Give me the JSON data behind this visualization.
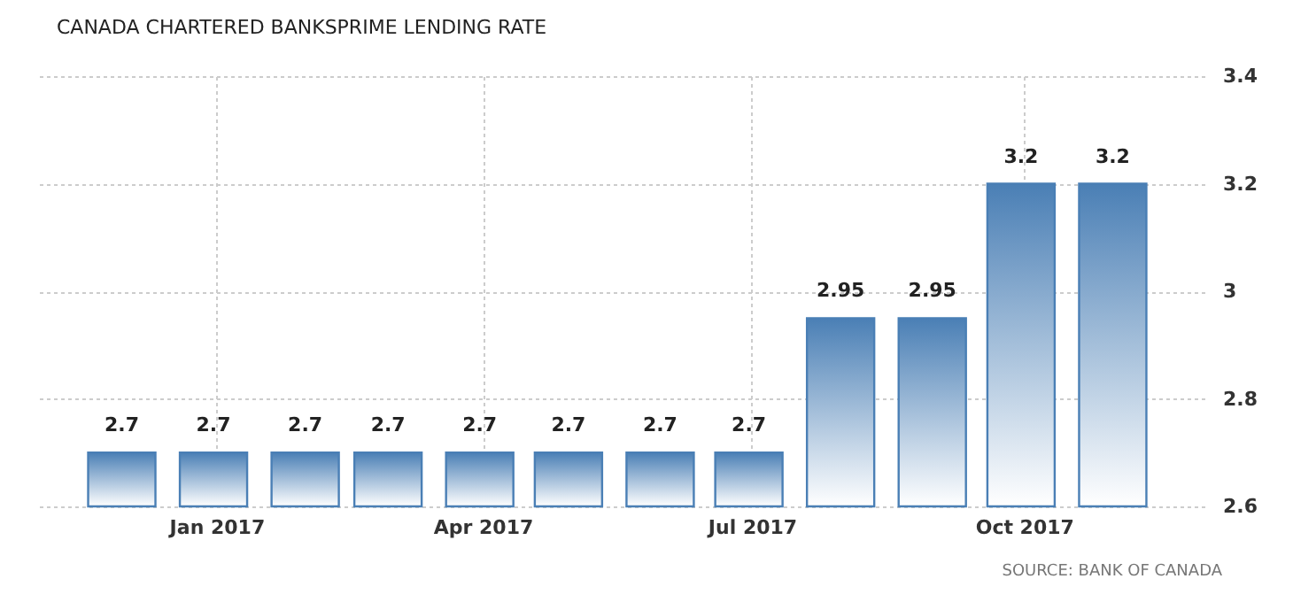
{
  "chart_data": {
    "type": "bar",
    "title": "CANADA CHARTERED BANKSPRIME LENDING RATE",
    "x": [
      "2016-11-30",
      "2016-12-31",
      "2017-01-31",
      "2017-02-28",
      "2017-03-31",
      "2017-04-30",
      "2017-05-31",
      "2017-06-30",
      "2017-07-31",
      "2017-08-31",
      "2017-09-30",
      "2017-10-31"
    ],
    "values": [
      2.7,
      2.7,
      2.7,
      2.7,
      2.7,
      2.7,
      2.7,
      2.7,
      2.95,
      2.95,
      3.2,
      3.2
    ],
    "color": "#4a7fb5",
    "xlim": [
      "2016-11-02",
      "2017-12-01"
    ],
    "xticks": [
      {
        "value": "2017-01-01",
        "label": "Jan 2017"
      },
      {
        "value": "2017-04-01",
        "label": "Apr 2017"
      },
      {
        "value": "2017-07-01",
        "label": "Jul 2017"
      },
      {
        "value": "2017-10-01",
        "label": "Oct 2017"
      }
    ],
    "ylim": [
      2.6,
      3.4
    ],
    "yticks": [
      2.6,
      2.8,
      3,
      3.2,
      3.4
    ],
    "grid": true,
    "data_labels": true,
    "annotations": [
      "SOURCE: BANK OF CANADA"
    ]
  }
}
